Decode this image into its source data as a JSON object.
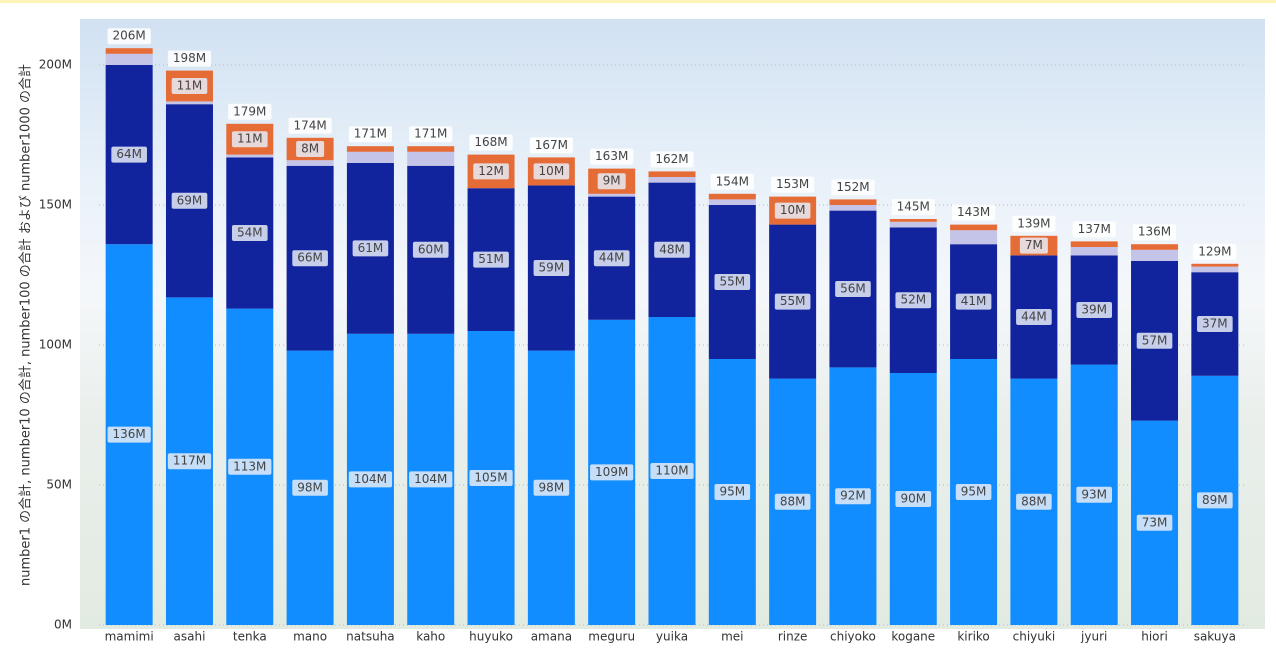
{
  "chart_data": {
    "type": "stacked_bar",
    "y_label": "number1 の合計, number10 の合計, number100 の合計 および number1000 の合計",
    "categories": [
      "mamimi",
      "asahi",
      "tenka",
      "mano",
      "natsuha",
      "kaho",
      "huyuko",
      "amana",
      "meguru",
      "yuika",
      "mei",
      "rinze",
      "chiyoko",
      "kogane",
      "kiriko",
      "chiyuki",
      "jyuri",
      "hiori",
      "sakuya"
    ],
    "series": [
      {
        "name": "number1",
        "color": "#118dff",
        "values": [
          136000000,
          117000000,
          113000000,
          98000000,
          104000000,
          104000000,
          105000000,
          98000000,
          109000000,
          110000000,
          95000000,
          88000000,
          92000000,
          90000000,
          95000000,
          88000000,
          93000000,
          73000000,
          89000000
        ],
        "value_labels": [
          "136M",
          "117M",
          "113M",
          "98M",
          "104M",
          "104M",
          "105M",
          "98M",
          "109M",
          "110M",
          "95M",
          "88M",
          "92M",
          "90M",
          "95M",
          "88M",
          "93M",
          "73M",
          "89M"
        ]
      },
      {
        "name": "number10",
        "color": "#12239e",
        "values": [
          64000000,
          69000000,
          54000000,
          66000000,
          61000000,
          60000000,
          51000000,
          59000000,
          44000000,
          48000000,
          55000000,
          55000000,
          56000000,
          52000000,
          41000000,
          44000000,
          39000000,
          57000000,
          37000000
        ],
        "value_labels": [
          "64M",
          "69M",
          "54M",
          "66M",
          "61M",
          "60M",
          "51M",
          "59M",
          "44M",
          "48M",
          "55M",
          "55M",
          "56M",
          "52M",
          "41M",
          "44M",
          "39M",
          "57M",
          "37M"
        ]
      },
      {
        "name": "number100",
        "color": "#c4c3e8",
        "values": [
          4000000,
          1000000,
          1000000,
          2000000,
          4000000,
          5000000,
          0,
          0,
          1000000,
          2000000,
          2000000,
          0,
          2000000,
          2000000,
          5000000,
          0,
          3000000,
          4000000,
          2000000
        ]
      },
      {
        "name": "number1000",
        "color": "#e66c37",
        "values": [
          2000000,
          11000000,
          11000000,
          8000000,
          2000000,
          2000000,
          12000000,
          10000000,
          9000000,
          2000000,
          2000000,
          10000000,
          2000000,
          1000000,
          2000000,
          7000000,
          2000000,
          2000000,
          1000000
        ],
        "value_labels": [
          null,
          "11M",
          "11M",
          "8M",
          null,
          null,
          "12M",
          "10M",
          "9M",
          null,
          null,
          "10M",
          null,
          null,
          null,
          "7M",
          null,
          null,
          null
        ]
      }
    ],
    "total_labels": [
      "206M",
      "198M",
      "179M",
      "174M",
      "171M",
      "171M",
      "168M",
      "167M",
      "163M",
      "162M",
      "154M",
      "153M",
      "152M",
      "145M",
      "143M",
      "139M",
      "137M",
      "136M",
      "129M"
    ],
    "ylim": [
      0,
      215000000
    ],
    "yticks": [
      {
        "value": 0,
        "label": "0M"
      },
      {
        "value": 50000000,
        "label": "50M"
      },
      {
        "value": 100000000,
        "label": "100M"
      },
      {
        "value": 150000000,
        "label": "150M"
      },
      {
        "value": 200000000,
        "label": "200M"
      }
    ],
    "grid": true
  }
}
